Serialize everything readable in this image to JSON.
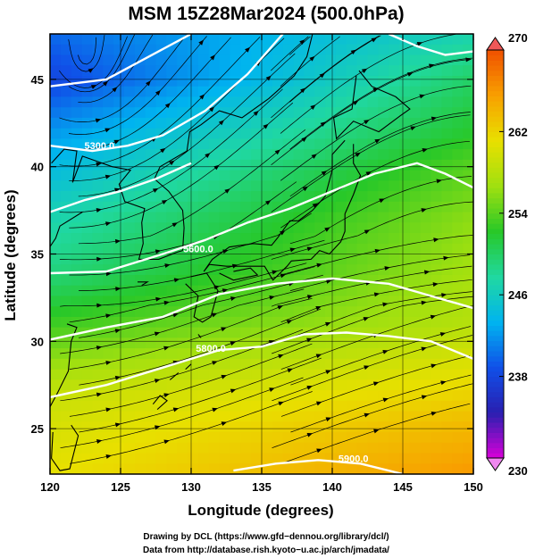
{
  "chart_data": {
    "type": "heatmap",
    "title": "MSM 15Z28Mar2024 (500.0hPa)",
    "xlabel": "Longitude (degrees)",
    "ylabel": "Latitude  (degrees)",
    "xlim": [
      120,
      150
    ],
    "ylim": [
      22.4,
      47.6
    ],
    "x_ticks": [
      "120",
      "125",
      "130",
      "135",
      "140",
      "145",
      "150"
    ],
    "y_ticks": [
      "25",
      "30",
      "35",
      "40",
      "45"
    ],
    "colorbar": {
      "range": [
        230,
        270
      ],
      "tick_labels": [
        "230",
        "238",
        "246",
        "254",
        "262",
        "270"
      ],
      "colors": [
        "#d800d8",
        "#2a1fb0",
        "#1050e8",
        "#00b4f0",
        "#20d8a0",
        "#28c828",
        "#a0e010",
        "#e8e000",
        "#f8a000",
        "#f05000"
      ]
    },
    "temperature_field_K": {
      "west_edge": [
        [
          47.6,
          240
        ],
        [
          45,
          238
        ],
        [
          42,
          242
        ],
        [
          40,
          244
        ],
        [
          37,
          247
        ],
        [
          34,
          249
        ],
        [
          31,
          253
        ],
        [
          29,
          256
        ],
        [
          27,
          259
        ],
        [
          25,
          260
        ],
        [
          22.4,
          261
        ]
      ],
      "east_edge": [
        [
          47.6,
          247
        ],
        [
          45,
          250
        ],
        [
          42,
          252
        ],
        [
          40,
          254
        ],
        [
          37,
          256
        ],
        [
          34,
          257
        ],
        [
          31,
          258
        ],
        [
          29,
          260
        ],
        [
          27,
          262
        ],
        [
          25,
          264
        ],
        [
          22.4,
          266
        ]
      ]
    },
    "contour_labels": [
      "5300.0",
      "5600.0",
      "5800.0",
      "5900.0"
    ],
    "wind": "streamlines, mostly westerly"
  },
  "credits": {
    "line1": "Drawing by DCL (https://www.gfd−dennou.org/library/dcl/)",
    "line2": "Data from http://database.rish.kyoto−u.ac.jp/arch/jmadata/"
  }
}
